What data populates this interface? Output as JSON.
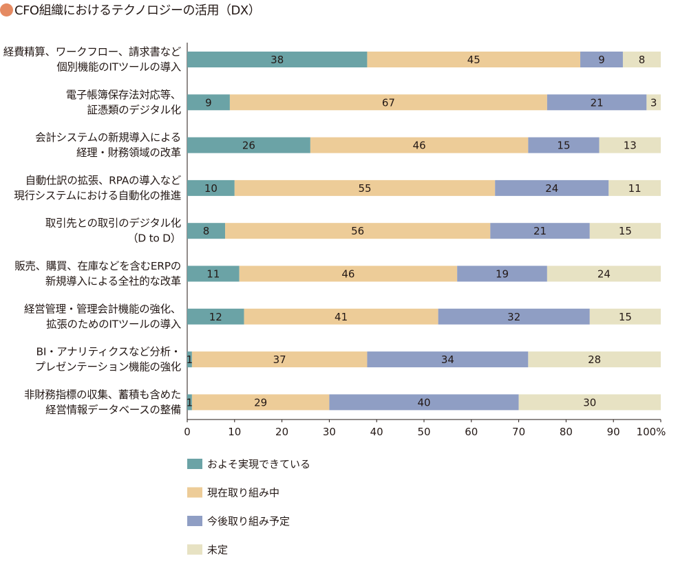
{
  "title": "CFO組織におけるテクノロジーの活用（DX）",
  "colors": {
    "title_dot": "#E58A62"
  },
  "chart_data": {
    "type": "bar",
    "orientation": "horizontal",
    "stacked": true,
    "percent": true,
    "categories": [
      [
        "経費精算、ワークフロー、請求書など",
        "個別機能のITツールの導入"
      ],
      [
        "電子帳簿保存法対応等、",
        "証憑類のデジタル化"
      ],
      [
        "会計システムの新規導入による",
        "経理・財務領域の改革"
      ],
      [
        "自動仕訳の拡張、RPAの導入など",
        "現行システムにおける自動化の推進"
      ],
      [
        "取引先との取引のデジタル化",
        "（D to D）"
      ],
      [
        "販売、購買、在庫などを含むERPの",
        "新規導入による全社的な改革"
      ],
      [
        "経営管理・管理会計機能の強化、",
        "拡張のためのITツールの導入"
      ],
      [
        "BI・アナリティクスなど分析・",
        "プレゼンテーション機能の強化"
      ],
      [
        "非財務指標の収集、蓄積も含めた",
        "経営情報データベースの整備"
      ]
    ],
    "series": [
      {
        "name": "およそ実現できている",
        "color": "#6BA3A6",
        "values": [
          38,
          9,
          26,
          10,
          8,
          11,
          12,
          1,
          1
        ]
      },
      {
        "name": "現在取り組み中",
        "color": "#EDCC98",
        "values": [
          45,
          67,
          46,
          55,
          56,
          46,
          41,
          37,
          29
        ]
      },
      {
        "name": "今後取り組み予定",
        "color": "#8F9EC4",
        "values": [
          9,
          21,
          15,
          24,
          21,
          19,
          32,
          34,
          40
        ]
      },
      {
        "name": "未定",
        "color": "#E7E2C3",
        "values": [
          8,
          3,
          13,
          11,
          15,
          24,
          15,
          28,
          30
        ]
      }
    ],
    "xlim": [
      0,
      100
    ],
    "xticks": [
      "0",
      "10",
      "20",
      "30",
      "40",
      "50",
      "60",
      "70",
      "80",
      "90",
      "100%"
    ],
    "grid": false,
    "legend": "bottom"
  }
}
